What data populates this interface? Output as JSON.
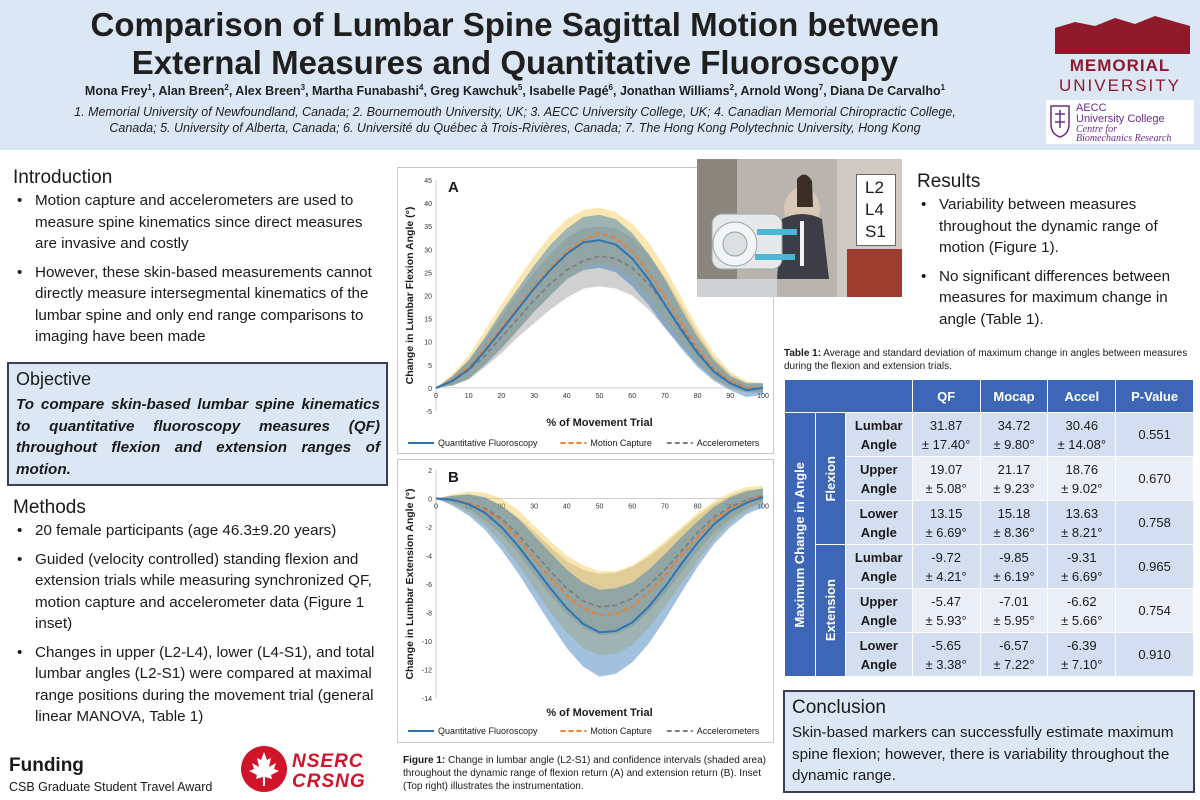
{
  "header": {
    "title_line1": "Comparison of Lumbar Spine Sagittal Motion between",
    "title_line2": "External Measures and Quantitative Fluoroscopy",
    "authors": [
      {
        "name": "Mona Frey",
        "sup": "1"
      },
      {
        "name": "Alan Breen",
        "sup": "2"
      },
      {
        "name": "Alex Breen",
        "sup": "3"
      },
      {
        "name": "Martha Funabashi",
        "sup": "4"
      },
      {
        "name": "Greg Kawchuk",
        "sup": "5"
      },
      {
        "name": "Isabelle Pagé",
        "sup": "6"
      },
      {
        "name": "Jonathan Williams",
        "sup": "2"
      },
      {
        "name": "Arnold Wong",
        "sup": "7"
      },
      {
        "name": "Diana De Carvalho",
        "sup": "1"
      }
    ],
    "affiliations_line1": "1. Memorial University of Newfoundland,  Canada; 2. Bournemouth University, UK; 3. AECC University College, UK; 4. Canadian Memorial Chiropractic College,",
    "affiliations_line2": "Canada; 5. University of Alberta, Canada; 6. Université du Québec à Trois-Rivières, Canada; 7. The Hong Kong Polytechnic University, Hong Kong",
    "logo1_line1": "MEMORIAL",
    "logo1_line2": "UNIVERSITY",
    "logo2_line1": "AECC",
    "logo2_line2": "University College",
    "logo2_line3": "Centre for",
    "logo2_line4": "Biomechanics Research"
  },
  "introduction": {
    "heading": "Introduction",
    "bullets": [
      "Motion capture and accelerometers are used to measure spine kinematics since direct measures are invasive and costly",
      "However, these skin-based measurements cannot directly measure intersegmental kinematics of the lumbar spine and only end range comparisons to imaging have been made"
    ]
  },
  "objective": {
    "heading": "Objective",
    "text": "To compare skin-based lumbar spine kinematics to quantitative fluoroscopy measures (QF) throughout flexion and extension ranges of motion."
  },
  "methods": {
    "heading": "Methods",
    "bullets": [
      "20 female participants (age 46.3±9.20 years)",
      "Guided (velocity controlled) standing flexion and extension trials while measuring synchronized QF, motion capture and accelerometer data (Figure 1 inset)",
      "Changes in upper (L2-L4), lower (L4-S1), and total lumbar angles (L2-S1) were compared at maximal range positions during the movement trial (general linear MANOVA, Table 1)"
    ]
  },
  "funding": {
    "heading": "Funding",
    "text": "CSB Graduate Student  Travel Award",
    "logo_line1": "NSERC",
    "logo_line2": "CRSNG"
  },
  "chart_data": [
    {
      "type": "line",
      "panel_label": "A",
      "title": "",
      "xlabel": "% of Movement Trial",
      "ylabel": "Change in Lumbar Flexion Angle (°)",
      "xlim": [
        0,
        100
      ],
      "ylim": [
        -5,
        45
      ],
      "x_ticks": [
        0,
        10,
        20,
        30,
        40,
        50,
        60,
        70,
        80,
        90,
        100
      ],
      "y_ticks": [
        -5,
        0,
        5,
        10,
        15,
        20,
        25,
        30,
        35,
        40,
        45
      ],
      "x": [
        0,
        5,
        10,
        15,
        20,
        25,
        30,
        35,
        40,
        45,
        50,
        55,
        60,
        65,
        70,
        75,
        80,
        85,
        90,
        95,
        100
      ],
      "series": [
        {
          "name": "Quantitative Fluoroscopy",
          "color": "#2e75b6",
          "style": "solid",
          "values": [
            0,
            1.5,
            4,
            8,
            12.5,
            17,
            21.5,
            25.5,
            29,
            31.5,
            32,
            31,
            28,
            23.5,
            18,
            12.5,
            7.5,
            3.5,
            1,
            -0.5,
            0
          ],
          "lower": [
            0,
            0.5,
            2,
            5,
            8.5,
            12.5,
            16.5,
            20,
            23.5,
            25.5,
            26,
            25,
            22,
            18,
            13,
            8.5,
            4.5,
            1.5,
            -0.5,
            -2,
            -1.5
          ],
          "upper": [
            0,
            2.5,
            6,
            11,
            16.5,
            21.5,
            26.5,
            31,
            34.5,
            37,
            37.5,
            36.5,
            33.5,
            29,
            23.5,
            17,
            11,
            6,
            2.5,
            1,
            1
          ]
        },
        {
          "name": "Motion Capture",
          "color": "#ed7d31",
          "style": "dash",
          "values": [
            0,
            1.8,
            4.5,
            8.5,
            13,
            17.5,
            22,
            26,
            29.5,
            32,
            33.5,
            32.5,
            29.5,
            25,
            19.5,
            14,
            8.5,
            4,
            1.5,
            0,
            0
          ],
          "lower": [
            0,
            0.5,
            2,
            5,
            8.5,
            12.5,
            16.5,
            20,
            23.5,
            26,
            27,
            26,
            23.5,
            19.5,
            14.5,
            10,
            5.5,
            2,
            0,
            -1,
            -1
          ],
          "upper": [
            0,
            3,
            7,
            12.5,
            18,
            23.5,
            28.5,
            33,
            36.5,
            38.5,
            39,
            38,
            35.5,
            31.5,
            26,
            19.5,
            13,
            7.5,
            3.5,
            1.5,
            1
          ]
        },
        {
          "name": "Accelerometers",
          "color": "#7f7f7f",
          "style": "dash",
          "values": [
            0,
            1.5,
            3.8,
            7,
            11,
            15,
            19,
            22.5,
            25.5,
            27.5,
            28.5,
            28,
            26,
            22.5,
            18,
            13,
            8,
            4,
            1.5,
            0,
            0
          ],
          "lower": [
            0,
            0.5,
            1.8,
            4.5,
            7.5,
            11,
            14,
            17,
            19.5,
            21.5,
            22,
            21.5,
            20,
            17,
            13,
            9,
            5,
            2,
            0,
            -1,
            -1
          ],
          "upper": [
            0,
            2.5,
            6,
            10.5,
            15.5,
            20.5,
            25,
            29,
            32.5,
            34.5,
            35,
            34.5,
            32.5,
            29,
            24,
            18,
            12,
            6.5,
            3,
            1,
            1
          ]
        }
      ]
    },
    {
      "type": "line",
      "panel_label": "B",
      "title": "",
      "xlabel": "% of Movement Trial",
      "ylabel": "Change in Lumbar Extension Angle (°)",
      "xlim": [
        0,
        100
      ],
      "ylim": [
        -14,
        2
      ],
      "x_ticks": [
        0,
        10,
        20,
        30,
        40,
        50,
        60,
        70,
        80,
        90,
        100
      ],
      "y_ticks": [
        -14,
        -12,
        -10,
        -8,
        -6,
        -4,
        -2,
        0,
        2
      ],
      "x": [
        0,
        5,
        10,
        15,
        20,
        25,
        30,
        35,
        40,
        45,
        50,
        55,
        60,
        65,
        70,
        75,
        80,
        85,
        90,
        95,
        100
      ],
      "series": [
        {
          "name": "Quantitative Fluoroscopy",
          "color": "#2e75b6",
          "style": "solid",
          "values": [
            0,
            -0.1,
            -0.4,
            -1,
            -2,
            -3.3,
            -4.8,
            -6.3,
            -7.7,
            -8.8,
            -9.4,
            -9.3,
            -8.7,
            -7.6,
            -6.2,
            -4.6,
            -3.1,
            -1.8,
            -0.9,
            -0.3,
            0.1
          ],
          "lower": [
            0,
            -0.5,
            -1.2,
            -2.2,
            -3.6,
            -5.2,
            -7,
            -8.8,
            -10.5,
            -11.8,
            -12.5,
            -12.3,
            -11.5,
            -10.2,
            -8.5,
            -6.6,
            -4.8,
            -3.2,
            -2,
            -1.1,
            -0.6
          ],
          "upper": [
            0,
            0.2,
            0.3,
            0.1,
            -0.5,
            -1.4,
            -2.6,
            -3.8,
            -5,
            -5.9,
            -6.4,
            -6.3,
            -5.9,
            -5,
            -3.9,
            -2.7,
            -1.6,
            -0.6,
            0.1,
            0.5,
            0.7
          ]
        },
        {
          "name": "Motion Capture",
          "color": "#ed7d31",
          "style": "dash",
          "values": [
            0,
            -0.1,
            -0.3,
            -0.8,
            -1.6,
            -2.8,
            -4.2,
            -5.6,
            -6.8,
            -7.7,
            -8.2,
            -8.1,
            -7.6,
            -6.6,
            -5.4,
            -4,
            -2.7,
            -1.5,
            -0.7,
            -0.2,
            0.2
          ],
          "lower": [
            0,
            -0.4,
            -1,
            -1.9,
            -3.1,
            -4.6,
            -6.3,
            -8,
            -9.4,
            -10.5,
            -11,
            -10.9,
            -10.3,
            -9.1,
            -7.6,
            -6,
            -4.4,
            -2.9,
            -1.7,
            -0.9,
            -0.3
          ],
          "upper": [
            0,
            0.3,
            0.5,
            0.4,
            0,
            -0.8,
            -1.9,
            -3,
            -4,
            -4.7,
            -5.1,
            -5.1,
            -4.7,
            -3.9,
            -3,
            -2,
            -1,
            -0.2,
            0.4,
            0.8,
            0.9
          ]
        },
        {
          "name": "Accelerometers",
          "color": "#7f7f7f",
          "style": "dash",
          "values": [
            0,
            -0.1,
            -0.3,
            -0.7,
            -1.4,
            -2.5,
            -3.8,
            -5.1,
            -6.3,
            -7.2,
            -7.6,
            -7.5,
            -7,
            -6.1,
            -5,
            -3.7,
            -2.4,
            -1.3,
            -0.6,
            -0.1,
            0.2
          ],
          "lower": [
            0,
            -0.3,
            -0.8,
            -1.5,
            -2.5,
            -3.8,
            -5.3,
            -6.8,
            -8.1,
            -9.1,
            -9.6,
            -9.5,
            -9,
            -8,
            -6.7,
            -5.2,
            -3.7,
            -2.4,
            -1.4,
            -0.7,
            -0.2
          ],
          "upper": [
            0,
            0.2,
            0.3,
            0,
            -0.5,
            -1.3,
            -2.3,
            -3.4,
            -4.4,
            -5,
            -5.3,
            -5.2,
            -4.8,
            -4.1,
            -3.2,
            -2.2,
            -1.2,
            -0.4,
            0.2,
            0.6,
            0.7
          ]
        }
      ]
    }
  ],
  "figure_caption": {
    "label": "Figure 1:",
    "text": " Change in lumbar angle (L2-S1) and confidence intervals (shaded area) throughout the dynamic range of flexion return (A) and extension return (B).  Inset (Top right) illustrates the instrumentation."
  },
  "inset": {
    "labels": [
      "L2",
      "L4",
      "S1"
    ]
  },
  "results": {
    "heading": "Results",
    "bullets": [
      "Variability between measures throughout the dynamic range of motion (Figure 1).",
      "No significant differences between measures for maximum change in angle (Table 1)."
    ]
  },
  "table": {
    "caption_label": "Table 1:",
    "caption_text": " Average and standard deviation of maximum change in angles between measures  during the flexion and extension trials.",
    "headers": [
      "QF",
      "Mocap",
      "Accel",
      "P-Value"
    ],
    "side_label": "Maximum  Change in Angle",
    "groups": [
      {
        "name": "Flexion",
        "rows": [
          {
            "label1": "Lumbar",
            "label2": "Angle",
            "qf": [
              "31.87",
              "± 17.40°"
            ],
            "mocap": [
              "34.72",
              "± 9.80°"
            ],
            "accel": [
              "30.46",
              "± 14.08°"
            ],
            "p": "0.551"
          },
          {
            "label1": "Upper",
            "label2": "Angle",
            "qf": [
              "19.07",
              "± 5.08°"
            ],
            "mocap": [
              "21.17",
              "± 9.23°"
            ],
            "accel": [
              "18.76",
              "± 9.02°"
            ],
            "p": "0.670"
          },
          {
            "label1": "Lower",
            "label2": "Angle",
            "qf": [
              "13.15",
              "± 6.69°"
            ],
            "mocap": [
              "15.18",
              "± 8.36°"
            ],
            "accel": [
              "13.63",
              "± 8.21°"
            ],
            "p": "0.758"
          }
        ]
      },
      {
        "name": "Extension",
        "rows": [
          {
            "label1": "Lumbar",
            "label2": "Angle",
            "qf": [
              "-9.72",
              "± 4.21°"
            ],
            "mocap": [
              "-9.85",
              "± 6.19°"
            ],
            "accel": [
              "-9.31",
              "± 6.69°"
            ],
            "p": "0.965"
          },
          {
            "label1": "Upper",
            "label2": "Angle",
            "qf": [
              "-5.47",
              "± 5.93°"
            ],
            "mocap": [
              "-7.01",
              "± 5.95°"
            ],
            "accel": [
              "-6.62",
              "± 5.66°"
            ],
            "p": "0.754"
          },
          {
            "label1": "Lower",
            "label2": "Angle",
            "qf": [
              "-5.65",
              "± 3.38°"
            ],
            "mocap": [
              "-6.57",
              "± 7.22°"
            ],
            "accel": [
              "-6.39",
              "± 7.10°"
            ],
            "p": "0.910"
          }
        ]
      }
    ]
  },
  "conclusion": {
    "heading": "Conclusion",
    "text": "Skin-based markers can successfully estimate maximum spine flexion; however, there is variability throughout the dynamic range."
  },
  "colors": {
    "header_bg": "#dbe7f4",
    "table_header": "#3e66b7",
    "qf": "#2e75b6",
    "mocap": "#ed7d31",
    "accel": "#7f7f7f",
    "mun_red": "#8e1a2b"
  }
}
